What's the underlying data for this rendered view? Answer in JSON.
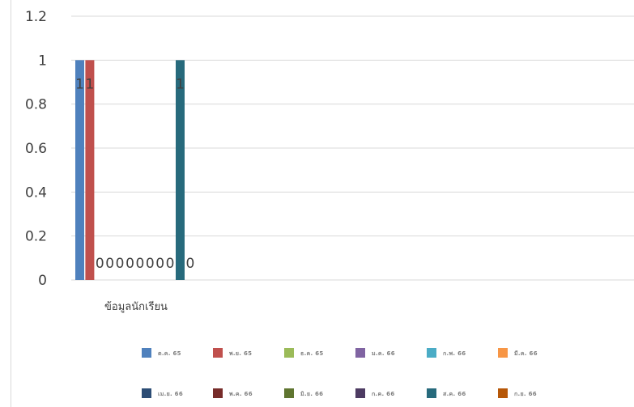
{
  "chart_data": {
    "type": "bar",
    "categories": [
      "ข้อมูลนักเรียน"
    ],
    "ylim": [
      0,
      1.2
    ],
    "yticks": [
      "0",
      "0.2",
      "0.4",
      "0.6",
      "0.8",
      "1",
      "1.2"
    ],
    "grid": true,
    "legend_position": "bottom",
    "series": [
      {
        "name": "ต.ค. 65",
        "values": [
          1
        ],
        "color": "#4f81bd"
      },
      {
        "name": "พ.ย. 65",
        "values": [
          1
        ],
        "color": "#c0504d"
      },
      {
        "name": "ธ.ค. 65",
        "values": [
          0
        ],
        "color": "#9bbb59"
      },
      {
        "name": "ม.ค. 66",
        "values": [
          0
        ],
        "color": "#8064a2"
      },
      {
        "name": "ก.พ. 66",
        "values": [
          0
        ],
        "color": "#4bacc6"
      },
      {
        "name": "มี.ค. 66",
        "values": [
          0
        ],
        "color": "#f79646"
      },
      {
        "name": "เม.ย. 66",
        "values": [
          0
        ],
        "color": "#2c4d75"
      },
      {
        "name": "พ.ค. 66",
        "values": [
          0
        ],
        "color": "#772c2a"
      },
      {
        "name": "มิ.ย. 66",
        "values": [
          0
        ],
        "color": "#5f7530"
      },
      {
        "name": "ก.ค. 66",
        "values": [
          0
        ],
        "color": "#4d3b62"
      },
      {
        "name": "ส.ค. 66",
        "values": [
          1
        ],
        "color": "#276a7c"
      },
      {
        "name": "ก.ย. 66",
        "values": [
          0
        ],
        "color": "#b65708"
      }
    ]
  }
}
